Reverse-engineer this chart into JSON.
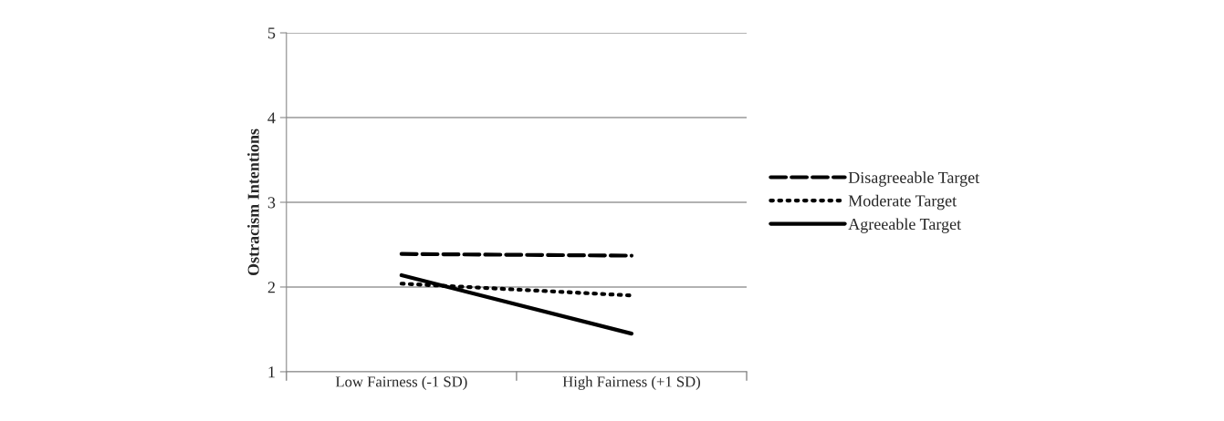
{
  "chart_data": {
    "type": "line",
    "ylabel": "Ostracism Intentions",
    "categories": [
      "Low Fairness (-1 SD)",
      "High Fairness (+1 SD)"
    ],
    "series": [
      {
        "name": "Disagreeable Target",
        "color": "#000000",
        "values": [
          2.39,
          2.37
        ],
        "line_style": "dashed"
      },
      {
        "name": "Moderate Target",
        "color": "#000000",
        "values": [
          2.04,
          1.9
        ],
        "line_style": "dotted"
      },
      {
        "name": "Agreeable Target",
        "color": "#000000",
        "values": [
          2.14,
          1.45
        ],
        "line_style": "solid"
      }
    ],
    "ylim": [
      1,
      5
    ],
    "yticks": [
      1,
      2,
      3,
      4,
      5
    ],
    "grid": "y",
    "legend": "right",
    "marker": "none"
  }
}
